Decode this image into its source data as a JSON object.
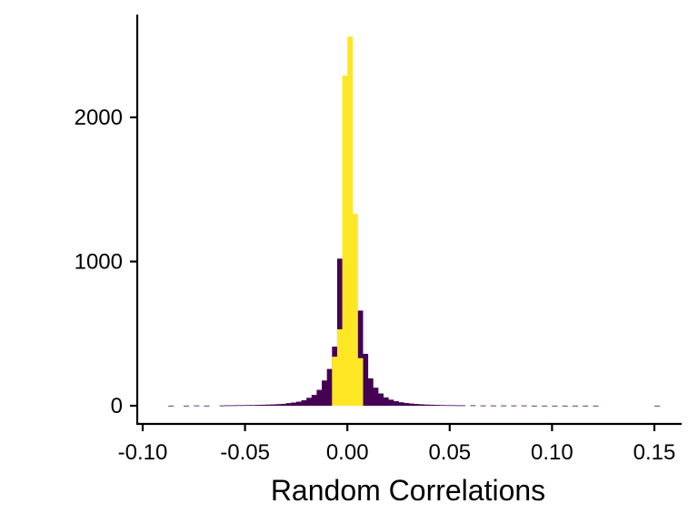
{
  "chart_data": {
    "type": "bar",
    "title": "",
    "xlabel": "Random Correlations",
    "ylabel": "",
    "bin_width": 0.0025,
    "xlim": [
      -0.1,
      0.165
    ],
    "ylim": [
      -120,
      2700
    ],
    "grid": false,
    "legend": "none",
    "x_ticks": [
      -0.1,
      -0.05,
      0.0,
      0.05,
      0.1,
      0.15
    ],
    "x_tick_labels": [
      "-0.10",
      "-0.05",
      "0.00",
      "0.05",
      "0.10",
      "0.15"
    ],
    "y_ticks": [
      0,
      1000,
      2000
    ],
    "y_tick_labels": [
      "0",
      "1000",
      "2000"
    ],
    "colors": {
      "outer": "#440154",
      "central": "#fde725"
    },
    "series": [
      {
        "color": "#440154",
        "bin_starts": [
          -0.0875,
          -0.08,
          -0.075,
          -0.07,
          -0.0625,
          -0.06,
          -0.0575,
          -0.055,
          -0.0525,
          -0.05,
          -0.0475,
          -0.045,
          -0.0425,
          -0.04,
          -0.0375,
          -0.035,
          -0.0325,
          -0.03,
          -0.0275,
          -0.025,
          -0.0225,
          -0.02,
          -0.0175,
          -0.015,
          -0.0125,
          -0.01,
          -0.0075,
          -0.005,
          -0.0025,
          0.0,
          0.0025,
          0.005,
          0.0075,
          0.01,
          0.0125,
          0.015,
          0.0175,
          0.02,
          0.0225,
          0.025,
          0.0275,
          0.03,
          0.0325,
          0.035,
          0.0375,
          0.04,
          0.0425,
          0.045,
          0.0475,
          0.05,
          0.0525,
          0.055,
          0.06,
          0.065,
          0.07,
          0.075,
          0.08,
          0.085,
          0.09,
          0.095,
          0.1,
          0.105,
          0.11,
          0.115,
          0.12,
          0.15
        ],
        "values": [
          1,
          1,
          2,
          1,
          2,
          3,
          3,
          4,
          4,
          5,
          5,
          6,
          7,
          8,
          9,
          11,
          13,
          18,
          22,
          28,
          38,
          55,
          75,
          110,
          175,
          255,
          410,
          1020,
          0,
          0,
          0,
          660,
          360,
          190,
          125,
          85,
          58,
          42,
          32,
          24,
          19,
          15,
          12,
          10,
          8,
          7,
          6,
          5,
          4,
          4,
          3,
          3,
          3,
          2,
          2,
          2,
          2,
          2,
          1,
          1,
          1,
          1,
          1,
          1,
          1,
          1
        ]
      },
      {
        "color": "#fde725",
        "bin_starts": [
          -0.0075,
          -0.005,
          -0.0025,
          0.0,
          0.0025,
          0.005
        ],
        "values": [
          340,
          530,
          2290,
          2560,
          1330,
          330
        ]
      }
    ]
  }
}
